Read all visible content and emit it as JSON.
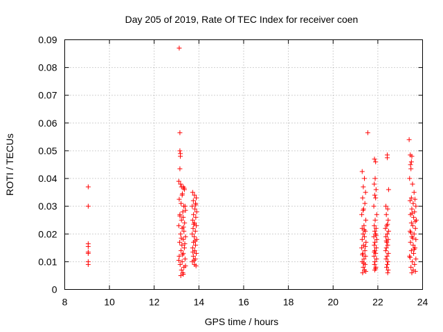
{
  "chart_data": {
    "type": "scatter",
    "title": "Day 205 of 2019, Rate Of TEC Index for receiver coen",
    "xlabel": "GPS time / hours",
    "ylabel": "ROTI / TECUs",
    "xlim": [
      8,
      24
    ],
    "ylim": [
      0,
      0.09
    ],
    "grid": true,
    "marker": "+",
    "color": "#ff0000",
    "x_ticks": [
      8,
      10,
      12,
      14,
      16,
      18,
      20,
      22,
      24
    ],
    "x_tick_labels": [
      "8",
      "10",
      "12",
      "14",
      "16",
      "18",
      "20",
      "22",
      "24"
    ],
    "y_ticks": [
      0,
      0.01,
      0.02,
      0.03,
      0.04,
      0.05,
      0.06,
      0.07,
      0.08,
      0.09
    ],
    "y_tick_labels": [
      "0",
      "0.01",
      "0.02",
      "0.03",
      "0.04",
      "0.05",
      "0.06",
      "0.07",
      "0.08",
      "0.09"
    ],
    "series": [
      {
        "name": "ROTI",
        "points": [
          [
            9.05,
            0.037
          ],
          [
            9.05,
            0.03
          ],
          [
            9.05,
            0.0165
          ],
          [
            9.05,
            0.0155
          ],
          [
            9.05,
            0.0135
          ],
          [
            9.05,
            0.013
          ],
          [
            9.05,
            0.01
          ],
          [
            9.05,
            0.009
          ],
          [
            13.12,
            0.087
          ],
          [
            13.15,
            0.0565
          ],
          [
            13.15,
            0.05
          ],
          [
            13.17,
            0.049
          ],
          [
            13.17,
            0.048
          ],
          [
            13.15,
            0.0435
          ],
          [
            13.1,
            0.039
          ],
          [
            13.18,
            0.038
          ],
          [
            13.22,
            0.037
          ],
          [
            13.3,
            0.037
          ],
          [
            13.35,
            0.036
          ],
          [
            13.25,
            0.034
          ],
          [
            13.12,
            0.0325
          ],
          [
            13.2,
            0.031
          ],
          [
            13.32,
            0.03
          ],
          [
            13.38,
            0.03
          ],
          [
            13.28,
            0.028
          ],
          [
            13.15,
            0.027
          ],
          [
            13.3,
            0.026
          ],
          [
            13.22,
            0.025
          ],
          [
            13.36,
            0.024
          ],
          [
            13.1,
            0.023
          ],
          [
            13.25,
            0.022
          ],
          [
            13.33,
            0.021
          ],
          [
            13.18,
            0.02
          ],
          [
            13.4,
            0.019
          ],
          [
            13.3,
            0.018
          ],
          [
            13.14,
            0.017
          ],
          [
            13.24,
            0.016
          ],
          [
            13.35,
            0.015
          ],
          [
            13.2,
            0.014
          ],
          [
            13.3,
            0.013
          ],
          [
            13.12,
            0.012
          ],
          [
            13.38,
            0.011
          ],
          [
            13.25,
            0.01
          ],
          [
            13.16,
            0.009
          ],
          [
            13.33,
            0.008
          ],
          [
            13.22,
            0.007
          ],
          [
            13.28,
            0.006
          ],
          [
            13.19,
            0.005
          ],
          [
            13.3,
            0.0055
          ],
          [
            13.4,
            0.0085
          ],
          [
            13.1,
            0.0105
          ],
          [
            13.27,
            0.0125
          ],
          [
            13.37,
            0.0165
          ],
          [
            13.21,
            0.0185
          ],
          [
            13.31,
            0.0225
          ],
          [
            13.15,
            0.0265
          ],
          [
            13.4,
            0.0285
          ],
          [
            13.26,
            0.0345
          ],
          [
            13.34,
            0.0365
          ],
          [
            13.72,
            0.035
          ],
          [
            13.8,
            0.034
          ],
          [
            13.88,
            0.033
          ],
          [
            13.75,
            0.032
          ],
          [
            13.85,
            0.031
          ],
          [
            13.7,
            0.03
          ],
          [
            13.82,
            0.029
          ],
          [
            13.9,
            0.028
          ],
          [
            13.76,
            0.027
          ],
          [
            13.86,
            0.026
          ],
          [
            13.72,
            0.025
          ],
          [
            13.8,
            0.024
          ],
          [
            13.88,
            0.023
          ],
          [
            13.74,
            0.022
          ],
          [
            13.84,
            0.021
          ],
          [
            13.7,
            0.02
          ],
          [
            13.79,
            0.019
          ],
          [
            13.9,
            0.018
          ],
          [
            13.76,
            0.017
          ],
          [
            13.85,
            0.016
          ],
          [
            13.72,
            0.015
          ],
          [
            13.81,
            0.014
          ],
          [
            13.88,
            0.013
          ],
          [
            13.75,
            0.012
          ],
          [
            13.84,
            0.011
          ],
          [
            13.71,
            0.01
          ],
          [
            13.8,
            0.009
          ],
          [
            13.87,
            0.0085
          ],
          [
            13.78,
            0.0105
          ],
          [
            13.73,
            0.0135
          ],
          [
            13.83,
            0.0175
          ],
          [
            13.77,
            0.0235
          ],
          [
            13.86,
            0.0305
          ],
          [
            21.3,
            0.0425
          ],
          [
            21.4,
            0.04
          ],
          [
            21.35,
            0.037
          ],
          [
            21.45,
            0.035
          ],
          [
            21.32,
            0.033
          ],
          [
            21.42,
            0.031
          ],
          [
            21.36,
            0.029
          ],
          [
            21.28,
            0.027
          ],
          [
            21.46,
            0.025
          ],
          [
            21.38,
            0.023
          ],
          [
            21.3,
            0.022
          ],
          [
            21.44,
            0.021
          ],
          [
            21.34,
            0.02
          ],
          [
            21.4,
            0.019
          ],
          [
            21.3,
            0.018
          ],
          [
            21.47,
            0.017
          ],
          [
            21.36,
            0.016
          ],
          [
            21.28,
            0.015
          ],
          [
            21.42,
            0.014
          ],
          [
            21.33,
            0.013
          ],
          [
            21.45,
            0.012
          ],
          [
            21.38,
            0.011
          ],
          [
            21.3,
            0.01
          ],
          [
            21.43,
            0.009
          ],
          [
            21.35,
            0.008
          ],
          [
            21.4,
            0.007
          ],
          [
            21.32,
            0.006
          ],
          [
            21.46,
            0.0065
          ],
          [
            21.37,
            0.0095
          ],
          [
            21.31,
            0.0125
          ],
          [
            21.44,
            0.0155
          ],
          [
            21.39,
            0.0215
          ],
          [
            21.34,
            0.0285
          ],
          [
            21.55,
            0.0565
          ],
          [
            21.85,
            0.047
          ],
          [
            21.9,
            0.046
          ],
          [
            21.88,
            0.04
          ],
          [
            21.84,
            0.038
          ],
          [
            21.92,
            0.036
          ],
          [
            21.86,
            0.034
          ],
          [
            21.9,
            0.033
          ],
          [
            21.82,
            0.03
          ],
          [
            21.95,
            0.027
          ],
          [
            21.88,
            0.025
          ],
          [
            21.84,
            0.023
          ],
          [
            21.92,
            0.022
          ],
          [
            21.86,
            0.021
          ],
          [
            21.9,
            0.02
          ],
          [
            21.82,
            0.019
          ],
          [
            21.95,
            0.018
          ],
          [
            21.87,
            0.017
          ],
          [
            21.84,
            0.016
          ],
          [
            21.93,
            0.015
          ],
          [
            21.86,
            0.014
          ],
          [
            21.9,
            0.013
          ],
          [
            21.83,
            0.012
          ],
          [
            21.94,
            0.011
          ],
          [
            21.87,
            0.01
          ],
          [
            21.85,
            0.009
          ],
          [
            21.91,
            0.008
          ],
          [
            21.86,
            0.007
          ],
          [
            21.9,
            0.0075
          ],
          [
            21.84,
            0.0135
          ],
          [
            21.92,
            0.0195
          ],
          [
            22.42,
            0.0485
          ],
          [
            22.42,
            0.0475
          ],
          [
            22.48,
            0.036
          ],
          [
            22.36,
            0.03
          ],
          [
            22.44,
            0.029
          ],
          [
            22.38,
            0.027
          ],
          [
            22.46,
            0.025
          ],
          [
            22.4,
            0.023
          ],
          [
            22.34,
            0.022
          ],
          [
            22.48,
            0.021
          ],
          [
            22.42,
            0.02
          ],
          [
            22.36,
            0.019
          ],
          [
            22.46,
            0.018
          ],
          [
            22.4,
            0.017
          ],
          [
            22.44,
            0.016
          ],
          [
            22.38,
            0.015
          ],
          [
            22.35,
            0.014
          ],
          [
            22.47,
            0.013
          ],
          [
            22.41,
            0.012
          ],
          [
            22.37,
            0.011
          ],
          [
            22.45,
            0.01
          ],
          [
            22.42,
            0.009
          ],
          [
            22.39,
            0.008
          ],
          [
            22.46,
            0.007
          ],
          [
            22.44,
            0.006
          ],
          [
            22.38,
            0.0175
          ],
          [
            22.43,
            0.0235
          ],
          [
            23.4,
            0.054
          ],
          [
            23.45,
            0.0485
          ],
          [
            23.52,
            0.048
          ],
          [
            23.5,
            0.046
          ],
          [
            23.46,
            0.045
          ],
          [
            23.48,
            0.0435
          ],
          [
            23.42,
            0.04
          ],
          [
            23.55,
            0.038
          ],
          [
            23.62,
            0.035
          ],
          [
            23.5,
            0.033
          ],
          [
            23.66,
            0.0325
          ],
          [
            23.44,
            0.032
          ],
          [
            23.58,
            0.031
          ],
          [
            23.7,
            0.03
          ],
          [
            23.52,
            0.029
          ],
          [
            23.64,
            0.028
          ],
          [
            23.46,
            0.027
          ],
          [
            23.6,
            0.026
          ],
          [
            23.72,
            0.025
          ],
          [
            23.5,
            0.024
          ],
          [
            23.56,
            0.023
          ],
          [
            23.68,
            0.022
          ],
          [
            23.44,
            0.021
          ],
          [
            23.62,
            0.02
          ],
          [
            23.52,
            0.019
          ],
          [
            23.7,
            0.018
          ],
          [
            23.46,
            0.017
          ],
          [
            23.58,
            0.016
          ],
          [
            23.66,
            0.015
          ],
          [
            23.5,
            0.014
          ],
          [
            23.6,
            0.013
          ],
          [
            23.42,
            0.012
          ],
          [
            23.7,
            0.011
          ],
          [
            23.54,
            0.01
          ],
          [
            23.64,
            0.009
          ],
          [
            23.48,
            0.008
          ],
          [
            23.58,
            0.007
          ],
          [
            23.68,
            0.0065
          ],
          [
            23.52,
            0.006
          ],
          [
            23.44,
            0.0115
          ],
          [
            23.62,
            0.0145
          ],
          [
            23.56,
            0.0185
          ],
          [
            23.47,
            0.0205
          ],
          [
            23.67,
            0.0245
          ],
          [
            23.53,
            0.0275
          ]
        ]
      }
    ]
  }
}
